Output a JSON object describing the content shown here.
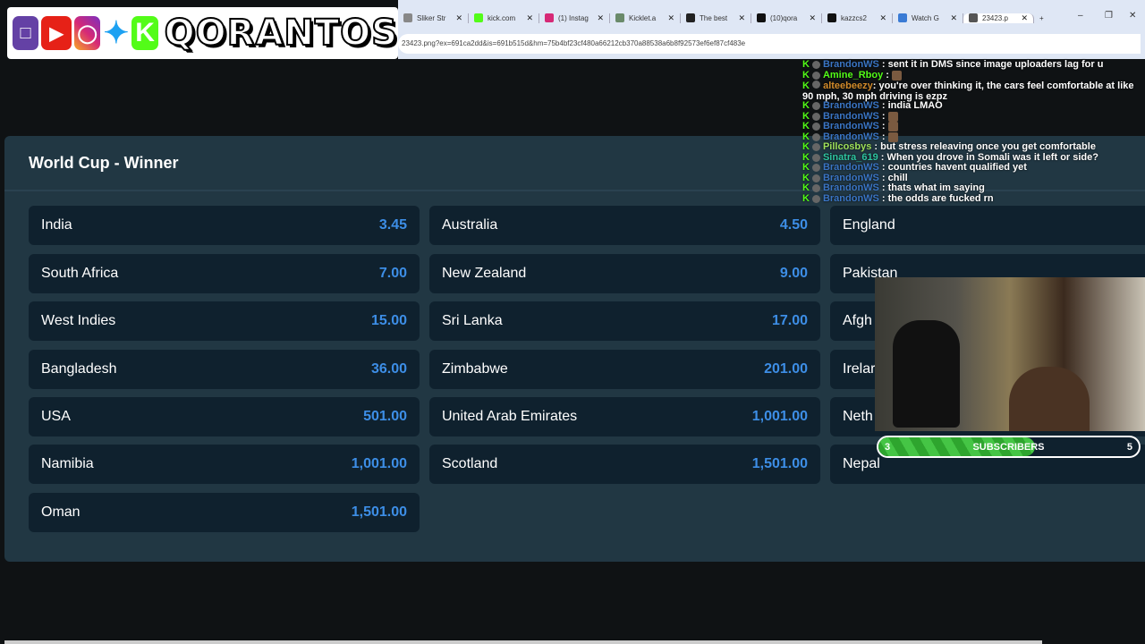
{
  "browser": {
    "tabs": [
      {
        "label": "Sliker Str",
        "icon": "sliker-icon",
        "color": "#888888"
      },
      {
        "label": "kick.com",
        "icon": "kick-icon",
        "color": "#53fc18"
      },
      {
        "label": "(1) Instag",
        "icon": "instagram-icon",
        "color": "#d62976"
      },
      {
        "label": "Kicklet.a",
        "icon": "kicklet-icon",
        "color": "#6a8a6a"
      },
      {
        "label": "The best",
        "icon": "shield-icon",
        "color": "#222222"
      },
      {
        "label": "(10)qora",
        "icon": "tiktok-icon",
        "color": "#111111"
      },
      {
        "label": "kazzcs2",
        "icon": "tiktok-icon",
        "color": "#111111"
      },
      {
        "label": "Watch G",
        "icon": "watch-icon",
        "color": "#3a7bd5"
      },
      {
        "label": "23423.p",
        "icon": "globe-icon",
        "color": "#555555",
        "active": true
      }
    ],
    "address": "23423.png?ex=691ca2dd&is=691b515d&hm=75b4bf23cf480a66212cb370a88538a6b8f92573ef6ef87cf483e"
  },
  "logo": {
    "name": "QORANTOS"
  },
  "market": {
    "title": "World Cup - Winner",
    "selections": [
      {
        "team": "India",
        "odds": "3.45"
      },
      {
        "team": "Australia",
        "odds": "4.50"
      },
      {
        "team": "England",
        "odds": ""
      },
      {
        "team": "South Africa",
        "odds": "7.00"
      },
      {
        "team": "New Zealand",
        "odds": "9.00"
      },
      {
        "team": "Pakistan",
        "odds": ""
      },
      {
        "team": "West Indies",
        "odds": "15.00"
      },
      {
        "team": "Sri Lanka",
        "odds": "17.00"
      },
      {
        "team": "Afgh",
        "odds": ""
      },
      {
        "team": "Bangladesh",
        "odds": "36.00"
      },
      {
        "team": "Zimbabwe",
        "odds": "201.00"
      },
      {
        "team": "Irelar",
        "odds": ""
      },
      {
        "team": "USA",
        "odds": "501.00"
      },
      {
        "team": "United Arab Emirates",
        "odds": "1,001.00"
      },
      {
        "team": "Neth",
        "odds": ""
      },
      {
        "team": "Namibia",
        "odds": "1,001.00"
      },
      {
        "team": "Scotland",
        "odds": "1,501.00"
      },
      {
        "team": "Nepal",
        "odds": ""
      },
      {
        "team": "Oman",
        "odds": "1,501.00"
      }
    ]
  },
  "chat": [
    {
      "user": "BrandonWS",
      "color": "#3a75c4",
      "msg": ": sent it in DMS since image uploaders lag for u"
    },
    {
      "user": "Amine_Rboy",
      "color": "#53fc18",
      "msg": ":",
      "emote": true
    },
    {
      "user": "alteebeezy",
      "color": "#d18a2a",
      "msg": ": you're over thinking it, the cars feel comfortable at like 90 mph, 30 mph driving is ezpz"
    },
    {
      "user": "BrandonWS",
      "color": "#3a75c4",
      "msg": ": india LMAO"
    },
    {
      "user": "BrandonWS",
      "color": "#3a75c4",
      "msg": ":",
      "emote": true
    },
    {
      "user": "BrandonWS",
      "color": "#3a75c4",
      "msg": ":",
      "emote": true
    },
    {
      "user": "BrandonWS",
      "color": "#3a75c4",
      "msg": ":",
      "emote": true
    },
    {
      "user": "Pillcosbys",
      "color": "#9ee05a",
      "msg": ": but stress releaving once you get comfortable"
    },
    {
      "user": "Sinatra_619",
      "color": "#2ec4a0",
      "msg": ": When you drove in Somali was it left or       side?"
    },
    {
      "user": "BrandonWS",
      "color": "#3a75c4",
      "msg": ": countries havent qualified yet"
    },
    {
      "user": "BrandonWS",
      "color": "#3a75c4",
      "msg": ": chill"
    },
    {
      "user": "BrandonWS",
      "color": "#3a75c4",
      "msg": ": thats what im saying"
    },
    {
      "user": "BrandonWS",
      "color": "#3a75c4",
      "msg": ": the odds are fucked rn"
    }
  ],
  "subscribers": {
    "current": "3",
    "label": "SUBSCRIBERS",
    "goal": "5",
    "progress": 0.6
  },
  "colors": {
    "odds": "#3d8ee6",
    "panel": "#213743",
    "card": "#0f212e",
    "kick": "#53fc18"
  }
}
